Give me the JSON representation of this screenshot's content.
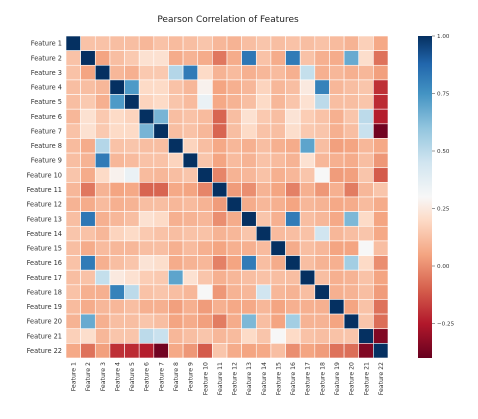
{
  "chart_data": {
    "type": "heatmap",
    "title": "Pearson Correlation of Features",
    "labels": [
      "Feature 1",
      "Feature 2",
      "Feature 3",
      "Feature 4",
      "Feature 5",
      "Feature 6",
      "Feature 7",
      "Feature 8",
      "Feature 9",
      "Feature 10",
      "Feature 11",
      "Feature 12",
      "Feature 13",
      "Feature 14",
      "Feature 15",
      "Feature 16",
      "Feature 17",
      "Feature 18",
      "Feature 19",
      "Feature 20",
      "Feature 21",
      "Feature 22"
    ],
    "matrix": [
      [
        1.0,
        0.13,
        0.13,
        0.12,
        0.12,
        0.1,
        0.13,
        0.11,
        0.12,
        0.14,
        0.1,
        0.09,
        0.12,
        0.14,
        0.12,
        0.13,
        0.12,
        0.13,
        0.11,
        0.09,
        0.17,
        0.06
      ],
      [
        0.13,
        1.0,
        0.05,
        0.12,
        0.15,
        0.22,
        0.22,
        0.07,
        0.09,
        0.07,
        -0.05,
        0.07,
        0.83,
        0.13,
        0.07,
        0.82,
        0.13,
        0.08,
        0.07,
        0.68,
        0.21,
        -0.06
      ],
      [
        0.13,
        0.05,
        1.0,
        0.1,
        0.08,
        0.15,
        0.15,
        0.52,
        0.82,
        0.2,
        0.09,
        0.11,
        0.08,
        0.1,
        0.11,
        0.08,
        0.48,
        0.08,
        0.1,
        0.08,
        0.1,
        0.04
      ],
      [
        0.12,
        0.12,
        0.1,
        1.0,
        0.73,
        0.2,
        0.2,
        0.13,
        0.1,
        0.28,
        0.05,
        0.08,
        0.1,
        0.18,
        0.1,
        0.12,
        0.25,
        0.8,
        0.1,
        0.12,
        0.14,
        -0.2
      ],
      [
        0.12,
        0.15,
        0.08,
        0.73,
        1.0,
        0.18,
        0.2,
        0.14,
        0.11,
        0.35,
        0.06,
        0.09,
        0.12,
        0.2,
        0.1,
        0.14,
        0.22,
        0.5,
        0.12,
        0.12,
        0.14,
        -0.21
      ],
      [
        0.1,
        0.22,
        0.15,
        0.2,
        0.18,
        1.0,
        0.65,
        0.12,
        0.13,
        0.11,
        -0.09,
        0.12,
        0.22,
        0.15,
        0.12,
        0.23,
        0.16,
        0.13,
        0.08,
        0.14,
        0.5,
        -0.24
      ],
      [
        0.13,
        0.22,
        0.15,
        0.2,
        0.2,
        0.65,
        1.0,
        0.12,
        0.13,
        0.1,
        -0.09,
        0.12,
        0.2,
        0.13,
        0.12,
        0.21,
        0.15,
        0.14,
        0.08,
        0.12,
        0.47,
        -0.38
      ],
      [
        0.11,
        0.07,
        0.52,
        0.13,
        0.14,
        0.12,
        0.12,
        1.0,
        0.18,
        0.12,
        0.06,
        0.1,
        0.08,
        0.12,
        0.08,
        0.07,
        0.7,
        0.12,
        0.04,
        0.05,
        0.1,
        0.06
      ],
      [
        0.12,
        0.09,
        0.82,
        0.1,
        0.11,
        0.13,
        0.13,
        0.18,
        1.0,
        0.14,
        0.05,
        0.11,
        0.09,
        0.13,
        0.11,
        0.09,
        0.22,
        0.1,
        0.08,
        0.07,
        0.12,
        0.02
      ],
      [
        0.14,
        0.07,
        0.2,
        0.28,
        0.35,
        0.11,
        0.1,
        0.12,
        0.14,
        1.0,
        -0.02,
        0.09,
        0.1,
        0.13,
        0.08,
        0.1,
        0.14,
        0.3,
        0.03,
        0.04,
        0.14,
        -0.11
      ],
      [
        0.1,
        -0.05,
        0.09,
        0.05,
        0.06,
        -0.09,
        -0.09,
        0.06,
        0.05,
        -0.02,
        1.0,
        0.03,
        0.0,
        0.09,
        0.05,
        -0.03,
        0.08,
        0.02,
        0.08,
        -0.04,
        0.1,
        0.14
      ],
      [
        0.09,
        0.07,
        0.11,
        0.08,
        0.09,
        0.12,
        0.12,
        0.1,
        0.11,
        0.09,
        0.03,
        1.0,
        0.07,
        0.1,
        0.08,
        0.05,
        0.1,
        0.09,
        0.06,
        0.07,
        0.11,
        0.07
      ],
      [
        0.12,
        0.83,
        0.08,
        0.1,
        0.12,
        0.22,
        0.2,
        0.08,
        0.09,
        0.1,
        0.0,
        0.07,
        1.0,
        0.14,
        0.08,
        0.82,
        0.12,
        0.1,
        0.06,
        0.64,
        0.2,
        0.05
      ],
      [
        0.14,
        0.13,
        0.1,
        0.18,
        0.2,
        0.15,
        0.13,
        0.12,
        0.13,
        0.13,
        0.09,
        0.1,
        0.14,
        1.0,
        0.11,
        0.12,
        0.13,
        0.45,
        0.1,
        0.12,
        0.14,
        0.06
      ],
      [
        0.12,
        0.07,
        0.11,
        0.1,
        0.1,
        0.12,
        0.12,
        0.08,
        0.11,
        0.08,
        0.05,
        0.08,
        0.08,
        0.11,
        1.0,
        0.07,
        0.12,
        0.1,
        0.05,
        0.05,
        0.3,
        0.12
      ],
      [
        0.13,
        0.82,
        0.08,
        0.12,
        0.14,
        0.23,
        0.21,
        0.07,
        0.09,
        0.1,
        -0.03,
        0.05,
        0.82,
        0.12,
        0.07,
        1.0,
        0.12,
        0.09,
        0.08,
        0.56,
        0.2,
        0.0
      ],
      [
        0.12,
        0.13,
        0.48,
        0.25,
        0.22,
        0.16,
        0.15,
        0.7,
        0.22,
        0.14,
        0.08,
        0.1,
        0.12,
        0.13,
        0.12,
        0.12,
        1.0,
        0.12,
        0.08,
        0.09,
        0.13,
        0.05
      ],
      [
        0.13,
        0.08,
        0.08,
        0.8,
        0.5,
        0.13,
        0.14,
        0.12,
        0.1,
        0.3,
        0.02,
        0.09,
        0.1,
        0.45,
        0.1,
        0.09,
        0.12,
        1.0,
        0.08,
        0.09,
        0.12,
        0.03
      ],
      [
        0.11,
        0.07,
        0.1,
        0.1,
        0.12,
        0.08,
        0.08,
        0.04,
        0.08,
        0.03,
        0.08,
        0.06,
        0.06,
        0.1,
        0.05,
        0.08,
        0.08,
        0.08,
        1.0,
        0.05,
        0.13,
        -0.06
      ],
      [
        0.09,
        0.68,
        0.08,
        0.12,
        0.12,
        0.14,
        0.12,
        0.05,
        0.07,
        0.04,
        -0.04,
        0.07,
        0.64,
        0.12,
        0.05,
        0.56,
        0.09,
        0.09,
        0.05,
        1.0,
        0.14,
        -0.07
      ],
      [
        0.17,
        0.21,
        0.1,
        0.14,
        0.14,
        0.5,
        0.47,
        0.1,
        0.12,
        0.14,
        0.1,
        0.11,
        0.2,
        0.14,
        0.3,
        0.2,
        0.13,
        0.12,
        0.13,
        0.14,
        1.0,
        -0.35
      ],
      [
        0.06,
        -0.06,
        0.04,
        -0.2,
        -0.21,
        -0.24,
        -0.38,
        0.06,
        0.02,
        -0.11,
        0.14,
        0.07,
        0.05,
        0.06,
        0.12,
        0.0,
        0.05,
        0.03,
        -0.06,
        -0.07,
        -0.35,
        1.0
      ]
    ],
    "colorbar": {
      "min": -0.4,
      "max": 1.0,
      "ticks": [
        1.0,
        0.75,
        0.5,
        0.25,
        0.0,
        -0.25
      ],
      "tick_labels": [
        "1.00",
        "0.75",
        "0.50",
        "0.25",
        "0.00",
        "−0.25"
      ],
      "colormap": "RdBu",
      "stops": [
        {
          "v": -0.4,
          "color": "#67001f"
        },
        {
          "v": -0.25,
          "color": "#b2182b"
        },
        {
          "v": -0.1,
          "color": "#d6604d"
        },
        {
          "v": 0.05,
          "color": "#f4a582"
        },
        {
          "v": 0.2,
          "color": "#fddbc7"
        },
        {
          "v": 0.3,
          "color": "#f7f7f7"
        },
        {
          "v": 0.45,
          "color": "#d1e5f0"
        },
        {
          "v": 0.6,
          "color": "#92c5de"
        },
        {
          "v": 0.75,
          "color": "#4393c3"
        },
        {
          "v": 0.88,
          "color": "#2166ac"
        },
        {
          "v": 1.0,
          "color": "#053061"
        }
      ]
    },
    "grid_line_color": "#ffffff"
  }
}
